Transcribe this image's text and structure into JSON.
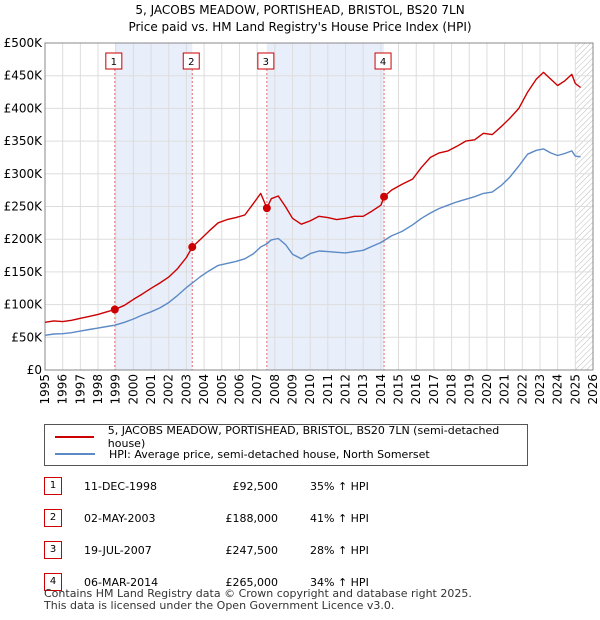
{
  "title_line1": "5, JACOBS MEADOW, PORTISHEAD, BRISTOL, BS20 7LN",
  "title_line2": "Price paid vs. HM Land Registry's House Price Index (HPI)",
  "colors": {
    "property": "#cc0000",
    "hpi": "#5b8ac6",
    "shade": "#e8eefa",
    "vline": "#e07070",
    "hatch": "#bbbbbb",
    "grid": "#dddddd"
  },
  "legend": {
    "property_label": "5, JACOBS MEADOW, PORTISHEAD, BRISTOL, BS20 7LN (semi-detached house)",
    "hpi_label": "HPI: Average price, semi-detached house, North Somerset"
  },
  "sales": [
    {
      "num": "1",
      "date": "11-DEC-1998",
      "price": "£92,500",
      "hpi": "35% ↑ HPI"
    },
    {
      "num": "2",
      "date": "02-MAY-2003",
      "price": "£188,000",
      "hpi": "41% ↑ HPI"
    },
    {
      "num": "3",
      "date": "19-JUL-2007",
      "price": "£247,500",
      "hpi": "28% ↑ HPI"
    },
    {
      "num": "4",
      "date": "06-MAR-2014",
      "price": "£265,000",
      "hpi": "34% ↑ HPI"
    }
  ],
  "footer_line1": "Contains HM Land Registry data © Crown copyright and database right 2025.",
  "footer_line2": "This data is licensed under the Open Government Licence v3.0.",
  "chart_data": {
    "type": "line",
    "title": "5, JACOBS MEADOW, PORTISHEAD, BRISTOL, BS20 7LN — Price paid vs. HM Land Registry's House Price Index (HPI)",
    "xlabel": "",
    "ylabel": "",
    "xlim": [
      1995,
      2026
    ],
    "ylim": [
      0,
      500000
    ],
    "x_ticks": [
      1995,
      1996,
      1997,
      1998,
      1999,
      2000,
      2001,
      2002,
      2003,
      2004,
      2005,
      2006,
      2007,
      2008,
      2009,
      2010,
      2011,
      2012,
      2013,
      2014,
      2015,
      2016,
      2017,
      2018,
      2019,
      2020,
      2021,
      2022,
      2023,
      2024,
      2025,
      2026
    ],
    "y_ticks": [
      {
        "value": 0,
        "label": "£0"
      },
      {
        "value": 50000,
        "label": "£50K"
      },
      {
        "value": 100000,
        "label": "£100K"
      },
      {
        "value": 150000,
        "label": "£150K"
      },
      {
        "value": 200000,
        "label": "£200K"
      },
      {
        "value": 250000,
        "label": "£250K"
      },
      {
        "value": 300000,
        "label": "£300K"
      },
      {
        "value": 350000,
        "label": "£350K"
      },
      {
        "value": 400000,
        "label": "£400K"
      },
      {
        "value": 450000,
        "label": "£450K"
      },
      {
        "value": 500000,
        "label": "£500K"
      }
    ],
    "grid": true,
    "shaded_ranges": [
      [
        1998.95,
        2003.33
      ],
      [
        2007.55,
        2014.18
      ]
    ],
    "future_hatch_from": 2025.0,
    "sale_markers": [
      {
        "label": "1",
        "x": 1998.95,
        "y": 92500
      },
      {
        "label": "2",
        "x": 2003.33,
        "y": 188000
      },
      {
        "label": "3",
        "x": 2007.55,
        "y": 247500
      },
      {
        "label": "4",
        "x": 2014.18,
        "y": 265000
      }
    ],
    "series": [
      {
        "name": "5, JACOBS MEADOW, PORTISHEAD, BRISTOL, BS20 7LN (semi-detached house)",
        "color": "#cc0000",
        "x": [
          1995.0,
          1995.5,
          1996.0,
          1996.5,
          1997.0,
          1997.5,
          1998.0,
          1998.5,
          1998.95,
          1999.5,
          2000.0,
          2000.5,
          2001.0,
          2001.5,
          2002.0,
          2002.5,
          2003.0,
          2003.33,
          2003.8,
          2004.3,
          2004.8,
          2005.3,
          2005.8,
          2006.3,
          2006.8,
          2007.2,
          2007.55,
          2007.8,
          2008.2,
          2008.6,
          2009.0,
          2009.5,
          2010.0,
          2010.5,
          2011.0,
          2011.5,
          2012.0,
          2012.5,
          2013.0,
          2013.5,
          2014.0,
          2014.18,
          2014.6,
          2015.2,
          2015.8,
          2016.3,
          2016.8,
          2017.3,
          2017.8,
          2018.3,
          2018.8,
          2019.3,
          2019.8,
          2020.3,
          2020.8,
          2021.3,
          2021.8,
          2022.3,
          2022.8,
          2023.2,
          2023.6,
          2024.0,
          2024.4,
          2024.8,
          2025.0,
          2025.3
        ],
        "y": [
          73000,
          75000,
          74000,
          76000,
          79000,
          82000,
          85000,
          89000,
          92500,
          99000,
          108000,
          116000,
          125000,
          133000,
          142000,
          155000,
          172000,
          188000,
          200000,
          213000,
          225000,
          230000,
          233000,
          237000,
          255000,
          270000,
          247500,
          262000,
          266000,
          250000,
          232000,
          223000,
          228000,
          235000,
          233000,
          230000,
          232000,
          235000,
          235000,
          243000,
          252000,
          265000,
          275000,
          284000,
          292000,
          310000,
          325000,
          332000,
          335000,
          342000,
          350000,
          352000,
          362000,
          360000,
          372000,
          385000,
          400000,
          425000,
          445000,
          455000,
          445000,
          435000,
          442000,
          452000,
          438000,
          432000
        ]
      },
      {
        "name": "HPI: Average price, semi-detached house, North Somerset",
        "color": "#5b8ac6",
        "x": [
          1995.0,
          1995.5,
          1996.0,
          1996.5,
          1997.0,
          1997.5,
          1998.0,
          1998.5,
          1998.95,
          1999.5,
          2000.0,
          2000.5,
          2001.0,
          2001.5,
          2002.0,
          2002.5,
          2003.0,
          2003.33,
          2003.8,
          2004.3,
          2004.8,
          2005.3,
          2005.8,
          2006.3,
          2006.8,
          2007.2,
          2007.55,
          2007.8,
          2008.2,
          2008.6,
          2009.0,
          2009.5,
          2010.0,
          2010.5,
          2011.0,
          2011.5,
          2012.0,
          2012.5,
          2013.0,
          2013.5,
          2014.0,
          2014.18,
          2014.6,
          2015.2,
          2015.8,
          2016.3,
          2016.8,
          2017.3,
          2017.8,
          2018.3,
          2018.8,
          2019.3,
          2019.8,
          2020.3,
          2020.8,
          2021.3,
          2021.8,
          2022.3,
          2022.8,
          2023.2,
          2023.6,
          2024.0,
          2024.4,
          2024.8,
          2025.0,
          2025.3
        ],
        "y": [
          53000,
          55000,
          55500,
          57000,
          59500,
          62000,
          64000,
          66500,
          68500,
          73000,
          78000,
          84000,
          89000,
          95000,
          103000,
          114000,
          126000,
          133000,
          143000,
          152000,
          160000,
          163000,
          166000,
          170000,
          178000,
          188000,
          193000,
          199000,
          201000,
          192000,
          177000,
          170000,
          178000,
          182000,
          181000,
          180000,
          179000,
          181000,
          183000,
          189000,
          195000,
          198000,
          205000,
          212000,
          222000,
          232000,
          240000,
          247000,
          252000,
          257000,
          261000,
          265000,
          270000,
          272000,
          282000,
          295000,
          312000,
          330000,
          336000,
          338000,
          332000,
          328000,
          331000,
          335000,
          327000,
          326000
        ]
      }
    ]
  }
}
